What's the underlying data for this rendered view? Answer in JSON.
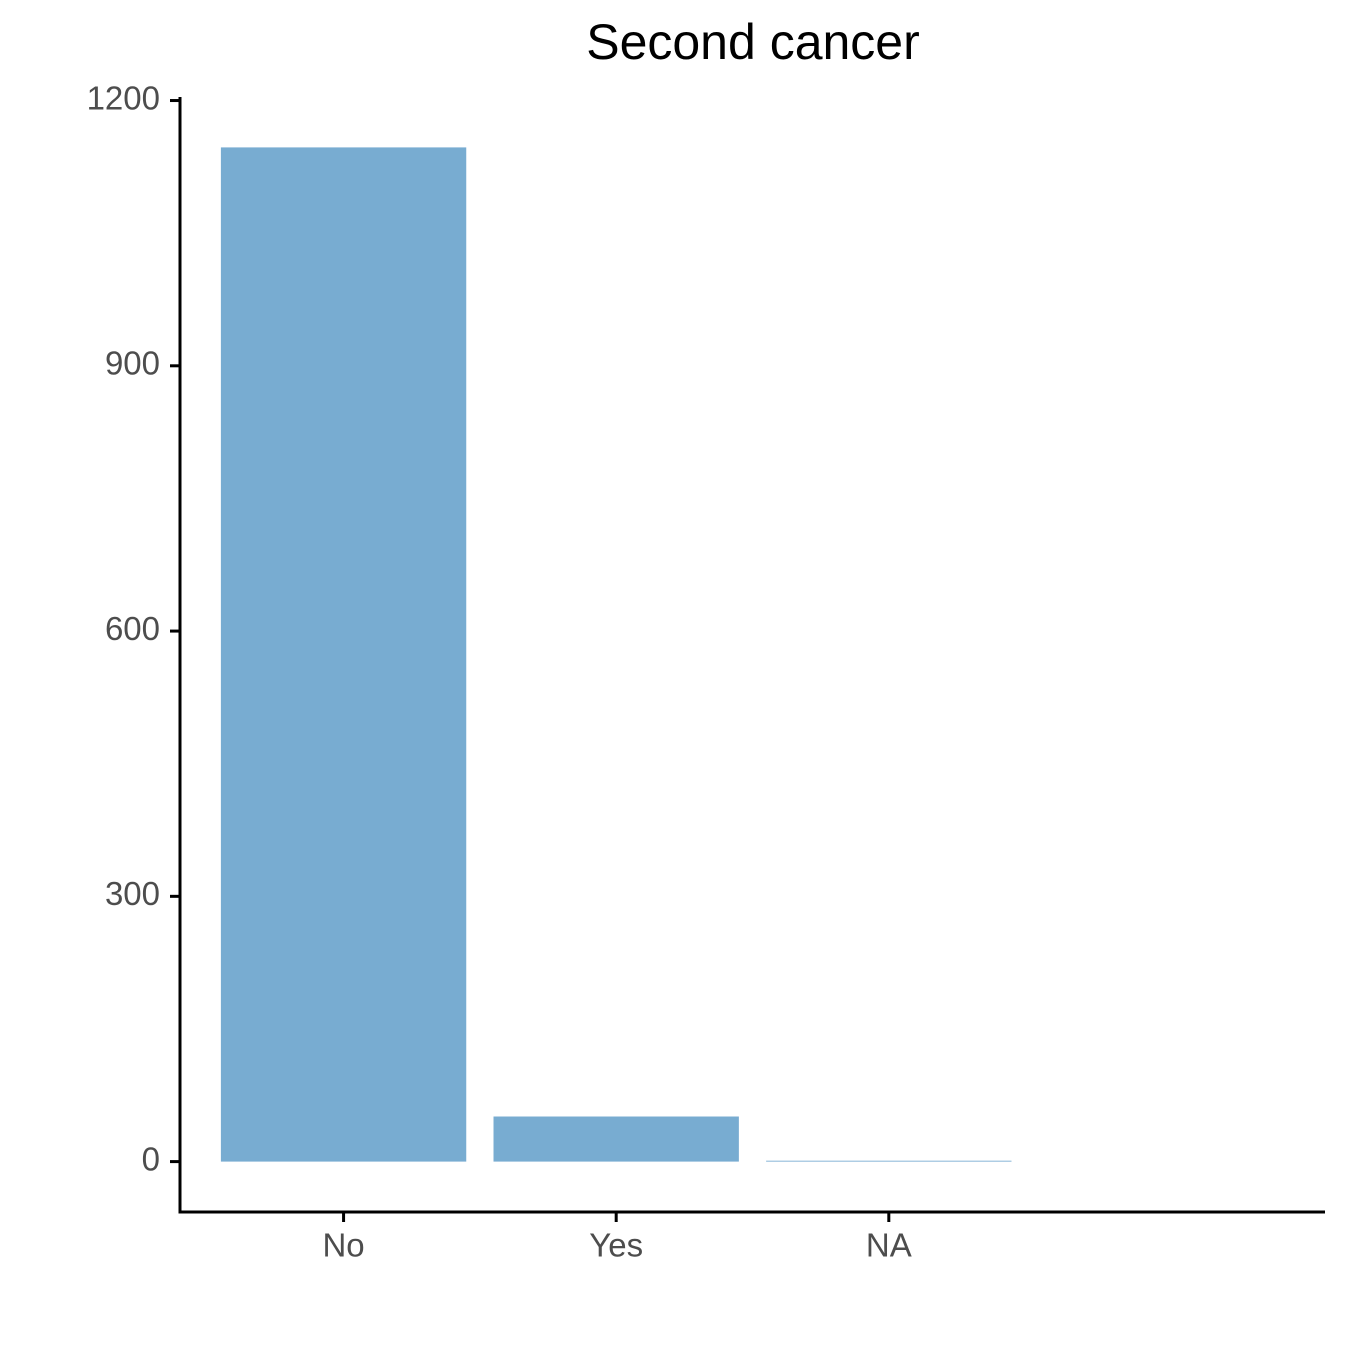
{
  "chart_data": {
    "type": "bar",
    "title": "Second cancer",
    "categories": [
      "No",
      "Yes",
      "NA"
    ],
    "values": [
      1147,
      51,
      1
    ],
    "color": "#78acd1",
    "ylim": [
      -57,
      1204
    ],
    "yticks": [
      0,
      300,
      600,
      900,
      1200
    ],
    "grid": false
  }
}
